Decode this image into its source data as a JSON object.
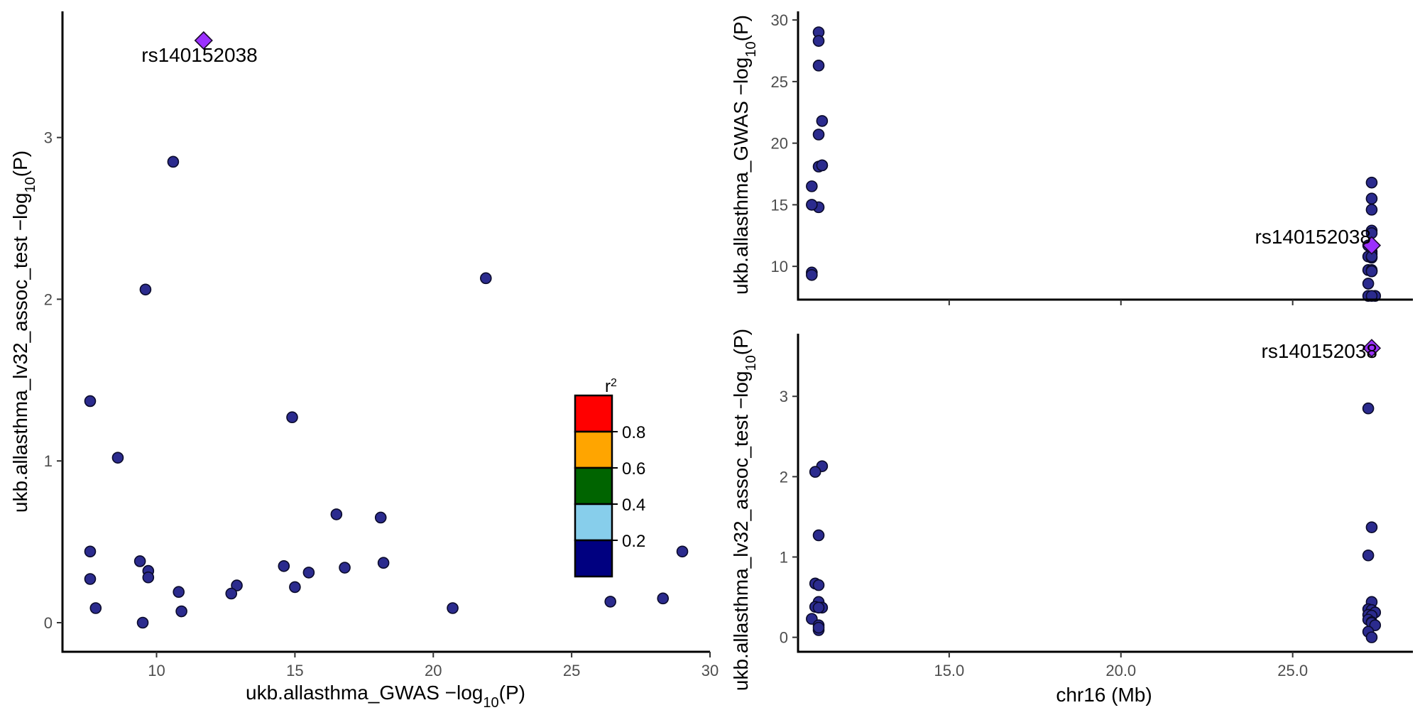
{
  "chart_data": [
    {
      "type": "scatter",
      "panel": "scatter-left",
      "xlabel": {
        "pre": "ukb.allasthma_GWAS −log",
        "sub": "10",
        "post": "(P)"
      },
      "ylabel": {
        "pre": "ukb.allasthma_lv32_assoc_test −log",
        "sub": "10",
        "post": "(P)"
      },
      "xlim": [
        6.6,
        30.0
      ],
      "ylim": [
        -0.18,
        3.78
      ],
      "xticks": [
        10,
        15,
        20,
        25,
        30
      ],
      "xtick_labels": [
        "10",
        "15",
        "20",
        "25",
        "30"
      ],
      "yticks": [
        0,
        1,
        2,
        3
      ],
      "ytick_labels": [
        "0",
        "1",
        "2",
        "3"
      ],
      "lead_label": "rs140152038",
      "lead": {
        "x": 11.7,
        "y": 3.6
      },
      "x": [
        10.6,
        9.6,
        21.9,
        7.6,
        14.9,
        8.6,
        16.5,
        18.1,
        7.6,
        29.0,
        9.4,
        18.2,
        14.6,
        9.7,
        16.8,
        15.5,
        9.7,
        7.6,
        12.9,
        15.0,
        10.8,
        12.7,
        7.8,
        20.7,
        28.3,
        26.4,
        10.9,
        9.5
      ],
      "y": [
        2.85,
        2.06,
        2.13,
        1.37,
        1.27,
        1.02,
        0.67,
        0.65,
        0.44,
        0.44,
        0.38,
        0.37,
        0.35,
        0.32,
        0.34,
        0.31,
        0.28,
        0.27,
        0.23,
        0.22,
        0.19,
        0.18,
        0.09,
        0.09,
        0.15,
        0.13,
        0.07,
        0.0
      ]
    },
    {
      "type": "scatter",
      "panel": "locus-top",
      "ylabel": {
        "pre": "ukb.allasthma_GWAS −log",
        "sub": "10",
        "post": "(P)"
      },
      "xlim": [
        10.6,
        28.5
      ],
      "ylim": [
        7.3,
        30.7
      ],
      "yticks": [
        10,
        15,
        20,
        25,
        30
      ],
      "ytick_labels": [
        "10",
        "15",
        "20",
        "25",
        "30"
      ],
      "xticks": [
        15.0,
        20.0,
        25.0
      ],
      "lead_label": "rs140152038",
      "lead": {
        "x": 27.3,
        "y": 11.7
      },
      "x": [
        11.2,
        11.2,
        11.2,
        11.3,
        11.2,
        11.3,
        11.2,
        11.3,
        11.0,
        11.2,
        11.0,
        11.0,
        11.0,
        27.3,
        27.3,
        27.3,
        27.3,
        27.3,
        27.2,
        27.3,
        27.3,
        27.2,
        27.3,
        27.3,
        27.2,
        27.3,
        27.3,
        27.3,
        27.2,
        27.4,
        27.2,
        27.3
      ],
      "y": [
        29.0,
        28.3,
        26.3,
        21.8,
        20.7,
        18.2,
        18.1,
        18.2,
        16.5,
        14.8,
        15.0,
        9.5,
        9.3,
        16.8,
        15.5,
        14.6,
        12.9,
        12.7,
        11.7,
        11.2,
        11.0,
        10.8,
        10.7,
        10.8,
        9.7,
        9.7,
        9.6,
        9.6,
        8.6,
        7.6,
        7.6,
        7.6
      ]
    },
    {
      "type": "scatter",
      "panel": "locus-bottom",
      "xlabel": "chr16 (Mb)",
      "xlim": [
        10.6,
        28.5
      ],
      "ylim": [
        -0.18,
        3.78
      ],
      "xticks": [
        15.0,
        20.0,
        25.0
      ],
      "xtick_labels": [
        "15.0",
        "20.0",
        "25.0"
      ],
      "yticks": [
        0,
        1,
        2,
        3
      ],
      "ytick_labels": [
        "0",
        "1",
        "2",
        "3"
      ],
      "lead_label": "rs140152038",
      "lead": {
        "x": 27.3,
        "y": 3.6
      },
      "x": [
        11.3,
        11.1,
        11.2,
        11.1,
        11.2,
        11.2,
        11.1,
        11.3,
        11.2,
        11.0,
        11.2,
        11.2,
        11.2,
        27.2,
        27.3,
        27.2,
        27.3,
        27.2,
        27.3,
        27.4,
        27.2,
        27.3,
        27.2,
        27.3,
        27.3,
        27.4,
        27.2,
        27.3
      ],
      "y": [
        2.13,
        2.06,
        1.27,
        0.67,
        0.65,
        0.44,
        0.38,
        0.37,
        0.37,
        0.23,
        0.15,
        0.09,
        0.12,
        2.85,
        1.37,
        1.02,
        0.44,
        0.35,
        0.34,
        0.31,
        0.28,
        0.27,
        0.22,
        0.19,
        0.18,
        0.15,
        0.07,
        0.0
      ]
    }
  ],
  "legend": {
    "title_base": "r",
    "title_sup": "2",
    "colors": [
      "#000080",
      "#87CEEB",
      "#006400",
      "#FFA500",
      "#FF0000"
    ],
    "labels": [
      "0.2",
      "0.4",
      "0.6",
      "0.8"
    ]
  },
  "colors": {
    "point_fill": "#2B2B8E",
    "point_stroke": "#0A0A2A",
    "lead_fill": "#9B30FF",
    "lead_stroke": "#1A0A2A"
  }
}
